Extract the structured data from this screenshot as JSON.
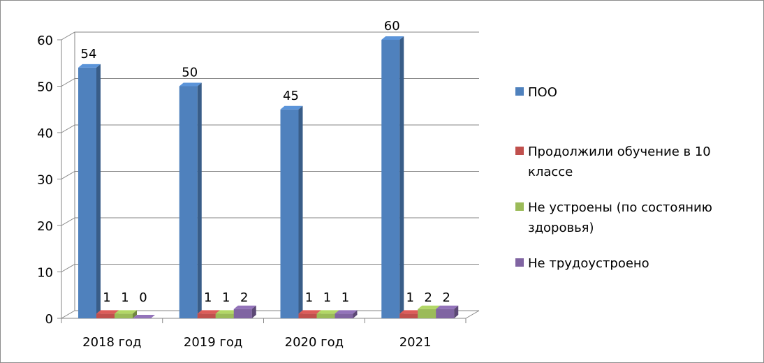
{
  "chart_data": {
    "type": "bar",
    "categories": [
      "2018 год",
      "2019 год",
      "2020 год",
      "2021"
    ],
    "series": [
      {
        "name": "ПОО",
        "values": [
          54,
          50,
          45,
          60
        ],
        "color": "#4F81BD"
      },
      {
        "name": "Продолжили обучение в 10 классе",
        "values": [
          1,
          1,
          1,
          1
        ],
        "color": "#C0504D"
      },
      {
        "name": "Не устроены (по состоянию здоровья)",
        "values": [
          1,
          1,
          1,
          2
        ],
        "color": "#9BBB59"
      },
      {
        "name": "Не трудоустроено",
        "values": [
          0,
          2,
          1,
          2
        ],
        "color": "#8064A2"
      }
    ],
    "ylim": [
      0,
      60
    ],
    "yticks": [
      0,
      10,
      20,
      30,
      40,
      50,
      60
    ],
    "grid": true,
    "legend_position": "right",
    "style": "3d-clustered-column",
    "data_labels": true
  }
}
